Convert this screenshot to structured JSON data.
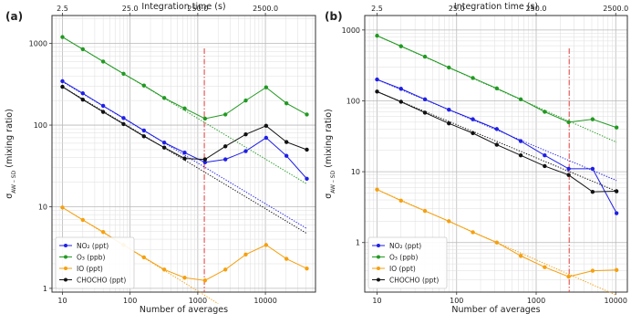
{
  "chart_data": [
    {
      "type": "line",
      "panel_label": "(a)",
      "xlabel": "Number of averages",
      "x2label": "Integration time (s)",
      "ylabel_main": "σ",
      "ylabel_sub": "AW – SD",
      "ylabel_rest": " (mixing ratio)",
      "x_scale": "log",
      "y_scale": "log",
      "xlim": [
        7,
        55000
      ],
      "ylim": [
        0.9,
        2200
      ],
      "x_ticks": [
        {
          "v": 10,
          "label": "10"
        },
        {
          "v": 100,
          "label": "100"
        },
        {
          "v": 1000,
          "label": "1000"
        },
        {
          "v": 10000,
          "label": "10000"
        }
      ],
      "y_ticks": [
        {
          "v": 1,
          "label": "1"
        },
        {
          "v": 10,
          "label": "10"
        },
        {
          "v": 100,
          "label": "100"
        },
        {
          "v": 1000,
          "label": "1000"
        }
      ],
      "x2_ticks": [
        {
          "v": 10,
          "label": "2.5"
        },
        {
          "v": 100,
          "label": "25.0"
        },
        {
          "v": 1000,
          "label": "250.0"
        },
        {
          "v": 10000,
          "label": "2500.0"
        }
      ],
      "vline_x": 1250,
      "grid": true,
      "legend_position": "bottom-left",
      "series": [
        {
          "name": "NO₂ (ppt)",
          "color": "#1f1fe6",
          "x": [
            10,
            20,
            40,
            80,
            160,
            320,
            640,
            1280,
            2560,
            5120,
            10240,
            20480,
            40960
          ],
          "y": [
            345,
            245,
            172,
            122,
            86,
            61,
            46,
            35,
            38,
            48,
            70,
            42,
            22
          ],
          "fit": {
            "x": [
              10,
              40960
            ],
            "y": [
              340,
              5.4
            ]
          }
        },
        {
          "name": "O₃ (ppb)",
          "color": "#229922",
          "x": [
            10,
            20,
            40,
            80,
            160,
            320,
            640,
            1280,
            2560,
            5120,
            10240,
            20480,
            40960
          ],
          "y": [
            1200,
            850,
            600,
            425,
            305,
            215,
            160,
            120,
            135,
            200,
            290,
            185,
            135
          ],
          "fit": {
            "x": [
              10,
              40960
            ],
            "y": [
              1200,
              19
            ]
          }
        },
        {
          "name": "IO (ppt)",
          "color": "#f5a00f",
          "x": [
            10,
            20,
            40,
            80,
            160,
            320,
            640,
            1280,
            2560,
            5120,
            10240,
            20480,
            40960
          ],
          "y": [
            9.8,
            6.9,
            4.9,
            3.4,
            2.4,
            1.7,
            1.35,
            1.25,
            1.7,
            2.6,
            3.4,
            2.3,
            1.75
          ],
          "fit": {
            "x": [
              10,
              2000
            ],
            "y": [
              9.8,
              0.65
            ]
          }
        },
        {
          "name": "CHOCHO (ppt)",
          "color": "#111111",
          "x": [
            10,
            20,
            40,
            80,
            160,
            320,
            640,
            1280,
            2560,
            5120,
            10240,
            20480,
            40960
          ],
          "y": [
            295,
            205,
            145,
            103,
            73,
            53,
            39,
            38,
            55,
            77,
            98,
            62,
            50
          ],
          "fit": {
            "x": [
              10,
              40960
            ],
            "y": [
              295,
              4.7
            ]
          }
        }
      ]
    },
    {
      "type": "line",
      "panel_label": "(b)",
      "xlabel": "Number of averages",
      "x2label": "Integration time (s)",
      "ylabel_main": "σ",
      "ylabel_sub": "AW – SD",
      "ylabel_rest": " (mixing ratio)",
      "x_scale": "log",
      "y_scale": "log",
      "xlim": [
        7,
        14000
      ],
      "ylim": [
        0.2,
        1600
      ],
      "x_ticks": [
        {
          "v": 10,
          "label": "10"
        },
        {
          "v": 100,
          "label": "100"
        },
        {
          "v": 1000,
          "label": "1000"
        },
        {
          "v": 10000,
          "label": "10000"
        }
      ],
      "y_ticks": [
        {
          "v": 1,
          "label": "1"
        },
        {
          "v": 10,
          "label": "10"
        },
        {
          "v": 100,
          "label": "100"
        },
        {
          "v": 1000,
          "label": "1000"
        }
      ],
      "x2_ticks": [
        {
          "v": 10,
          "label": "2.5"
        },
        {
          "v": 100,
          "label": "25.0"
        },
        {
          "v": 1000,
          "label": "250.0"
        },
        {
          "v": 10000,
          "label": "2500.0"
        }
      ],
      "vline_x": 2600,
      "grid": true,
      "legend_position": "bottom-left",
      "series": [
        {
          "name": "NO₂ (ppt)",
          "color": "#1f1fe6",
          "x": [
            10,
            20,
            40,
            80,
            160,
            320,
            640,
            1280,
            2560,
            5120,
            10240
          ],
          "y": [
            200,
            148,
            105,
            75,
            55,
            40,
            27,
            17,
            11,
            11,
            2.6
          ],
          "fit": {
            "x": [
              10,
              10240
            ],
            "y": [
              200,
              7.5
            ]
          }
        },
        {
          "name": "O₃ (ppb)",
          "color": "#229922",
          "x": [
            10,
            20,
            40,
            80,
            160,
            320,
            640,
            1280,
            2560,
            5120,
            10240
          ],
          "y": [
            830,
            590,
            420,
            295,
            210,
            150,
            105,
            70,
            50,
            55,
            42
          ],
          "fit": {
            "x": [
              10,
              10240
            ],
            "y": [
              830,
              26
            ]
          }
        },
        {
          "name": "IO (ppt)",
          "color": "#f5a00f",
          "x": [
            10,
            20,
            40,
            80,
            160,
            320,
            640,
            1280,
            2560,
            5120,
            10240
          ],
          "y": [
            5.6,
            3.9,
            2.8,
            2.0,
            1.4,
            1.0,
            0.65,
            0.45,
            0.33,
            0.4,
            0.41
          ],
          "fit": {
            "x": [
              10,
              10240
            ],
            "y": [
              5.6,
              0.18
            ]
          }
        },
        {
          "name": "CHOCHO (ppt)",
          "color": "#111111",
          "x": [
            10,
            20,
            40,
            80,
            160,
            320,
            640,
            1280,
            2560,
            5120,
            10240
          ],
          "y": [
            135,
            97,
            68,
            48,
            35,
            24,
            17,
            12,
            9,
            5.2,
            5.3
          ],
          "fit": {
            "x": [
              10,
              10240
            ],
            "y": [
              135,
              5.3
            ]
          }
        }
      ]
    }
  ]
}
